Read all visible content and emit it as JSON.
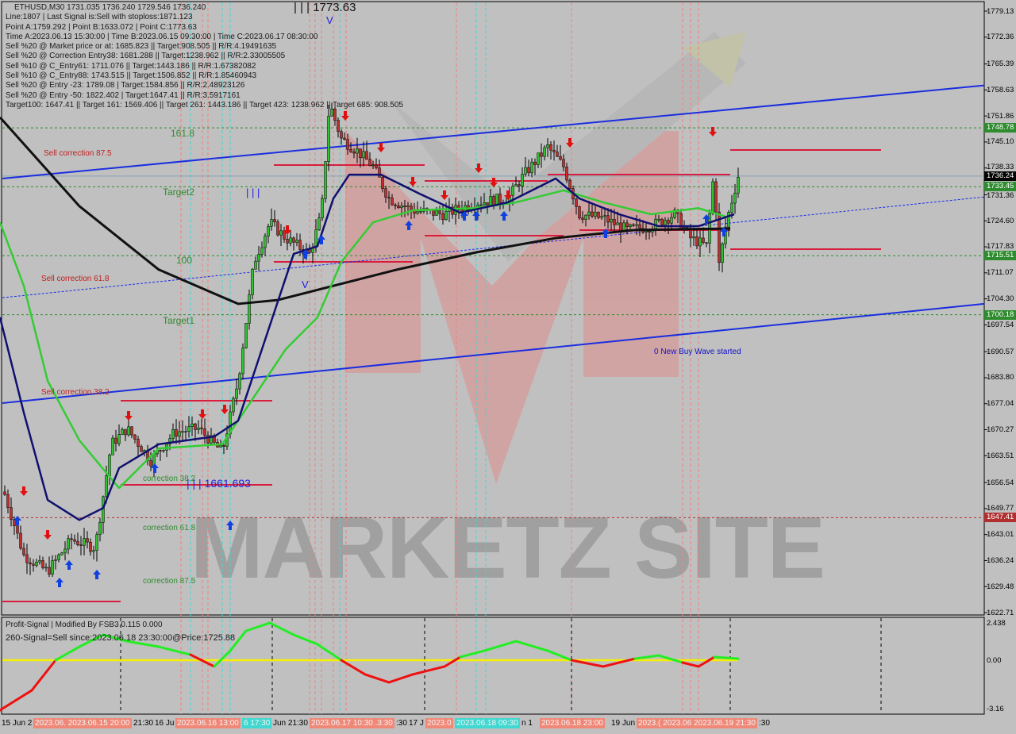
{
  "header": {
    "symbol_line": "ETHUSD,M30  1731.035 1736.240 1729.546 1736.240",
    "lines": [
      "Line:1807 | Last Signal is:Sell with stoploss:1871.123",
      "Point A:1759.292 | Point B:1633.072 | Point C:1773.63",
      "Time A:2023.06.13 15:30:00 | Time B:2023.06.15 09:30:00 | Time C:2023.06.17 08:30:00",
      "Sell %20 @ Market price or at: 1685.823 || Target:908.505 || R/R:4.19491635",
      "Sell %20 @ Correction Entry38: 1681.288 || Target:1238.962 || R/R:2.33005505",
      "Sell %10 @ C_Entry61: 1711.076 || Target:1443.186 || R/R:1.67382082",
      "Sell %10 @ C_Entry88: 1743.515 || Target:1506.852 || R/R:1.85460943",
      "Sell %20 @ Entry -23: 1789.08 | Target:1584.856 || R/R:2.48923126",
      "Sell %20 @ Entry -50: 1822.402 | Target:1647.41 || R/R:3.5917161",
      "Target100: 1647.41 || Target 161: 1569.406 || Target 261: 1443.186 || Target 423: 1238.962 || Target 685: 908.505"
    ]
  },
  "indicator": {
    "title": "Profit-Signal | Modified By FSB3 0.115 0.000",
    "signal": "260-Signal=Sell since:2023.06.18 23:30:00@Price:1725.88"
  },
  "chart_data": {
    "type": "line",
    "title": "ETHUSD,M30",
    "ylim": [
      1622.715,
      1779.13
    ],
    "y_ticks": [
      "1779.13",
      "1772.36",
      "1765.39",
      "1758.63",
      "1751.86",
      "1745.10",
      "1738.33",
      "1731.36",
      "1724.60",
      "1717.83",
      "1711.07",
      "1704.30",
      "1697.54",
      "1690.57",
      "1683.80",
      "1677.04",
      "1670.27",
      "1663.51",
      "1656.54",
      "1649.77",
      "1643.01",
      "1636.24",
      "1629.48",
      "1622.71"
    ],
    "price_close": [
      1654.1,
      1637.6,
      1633.4,
      1641.7,
      1639.6,
      1666.5,
      1670.6,
      1662.3,
      1669.6,
      1670.6,
      1664.4,
      1683.0,
      1713.9,
      1724.2,
      1720.1,
      1716.0,
      1726.3,
      1755.2,
      1745.9,
      1742.8,
      1738.7,
      1730.4,
      1727.3,
      1726.3,
      1729.4,
      1730.4,
      1736.6,
      1743.8,
      1738.7,
      1726.3,
      1725.3,
      1722.2,
      1723.2,
      1726.3,
      1720.1,
      1718.0,
      1738.7,
      1711.9,
      1724.2,
      1736.24
    ],
    "ma_black": [
      1751.5,
      1728.4,
      1711.9,
      1703.0,
      1704.0,
      1707.7,
      1711.9,
      1716.4,
      1720.1,
      1722.2,
      1722.6
    ],
    "ma_green": [
      1724.2,
      1707.7,
      1683.0,
      1667.5,
      1655.1,
      1665.4,
      1666.5,
      1678.8,
      1691.2,
      1699.5,
      1713.9,
      1724.2,
      1727.3,
      1727.9,
      1729.4,
      1732.5,
      1729.4,
      1726.3,
      1727.9,
      1725.3
    ],
    "ma_navy": [
      1699.5,
      1674.7,
      1652.0,
      1646.8,
      1649.9,
      1660.3,
      1666.5,
      1668.5,
      1672.6,
      1691.2,
      1716.0,
      1718.0,
      1730.4,
      1736.6,
      1736.6,
      1731.5,
      1726.7,
      1729.4,
      1735.6,
      1730.4,
      1726.3,
      1723.2,
      1723.2,
      1726.3
    ],
    "channel_upper": [
      1735.6,
      1759.8
    ],
    "channel_lower": [
      1677.2,
      1703.0
    ],
    "channel_mid": [
      1704.6,
      1730.8
    ],
    "levels": [
      {
        "price": "1748.78",
        "color": "#2e8b2e"
      },
      {
        "price": "1733.45",
        "color": "#2e8b2e"
      },
      {
        "price": "1715.51",
        "color": "#2e8b2e"
      },
      {
        "price": "1700.18",
        "color": "#2e8b2e"
      },
      {
        "price": "1647.41",
        "color": "#b03030"
      }
    ],
    "current_price": "1736.24",
    "annotations": [
      {
        "text": "161.8",
        "color": "#2e8b2e"
      },
      {
        "text": "Target2",
        "color": "#2e8b2e"
      },
      {
        "text": "100",
        "color": "#2e8b2e"
      },
      {
        "text": "Target1",
        "color": "#2e8b2e"
      },
      {
        "text": "Sell correction 87.5",
        "color": "#c02020"
      },
      {
        "text": "Sell correction 61.8",
        "color": "#c02020"
      },
      {
        "text": "Sell correction 38.2",
        "color": "#c02020"
      },
      {
        "text": "correction 38.2",
        "color": "#2e8b2e"
      },
      {
        "text": "correction 61.8",
        "color": "#2e8b2e"
      },
      {
        "text": "correction 87.5",
        "color": "#2e8b2e"
      },
      {
        "text": "0 New Buy Wave started",
        "color": "#1010d0"
      },
      {
        "text": "| | | 1773.63",
        "color": "#111"
      },
      {
        "text": "| | | 1661.693",
        "color": "#2020e0"
      },
      {
        "text": "V",
        "color": "#2020e0"
      },
      {
        "text": "V",
        "color": "#2020e0"
      },
      {
        "text": "| | |",
        "color": "#2020e0"
      }
    ],
    "indicator": {
      "ylim": [
        -3.16,
        2.438
      ],
      "y_ticks": [
        "2.438",
        "0.00",
        "-3.16"
      ],
      "values": [
        -3.16,
        -1.91,
        0,
        0.88,
        1.66,
        1.24,
        0.88,
        0.36,
        -0.4,
        0.62,
        1.92,
        2.44,
        1.66,
        1.04,
        0,
        -0.9,
        -1.4,
        -0.9,
        -0.4,
        0.21,
        0.62,
        1.24,
        0.62,
        0,
        -0.4,
        0.1,
        0.31,
        -0.15,
        -0.4,
        0.21,
        0.1
      ]
    },
    "x_labels": [
      {
        "text": "15 Jun 2",
        "style": ""
      },
      {
        "text": "2023.06. 2023.06.15 20:00",
        "style": "s"
      },
      {
        "text": "21:30",
        "style": ""
      },
      {
        "text": "16 Ju",
        "style": ""
      },
      {
        "text": "2023.06.16 13:00",
        "style": "s"
      },
      {
        "text": "6 17:30",
        "style": "c"
      },
      {
        "text": "Jun 21:30",
        "style": ""
      },
      {
        "text": "2023.06.17 10:30 .3:30",
        "style": "s"
      },
      {
        "text": ":30",
        "style": ""
      },
      {
        "text": "17 J",
        "style": ""
      },
      {
        "text": "2023.0",
        "style": "s"
      },
      {
        "text": "2023.06.18 09:30",
        "style": "c"
      },
      {
        "text": "n 1",
        "style": ""
      },
      {
        "text": "2023.06.18 23:00",
        "style": "s"
      },
      {
        "text": "19 Jun",
        "style": ""
      },
      {
        "text": "2023.( 2023.06 2023.06.19 21:30",
        "style": "s"
      },
      {
        "text": ":30",
        "style": ""
      }
    ],
    "watermark": "MARKETZ SITE",
    "colors": {
      "bg": "#c0c0c0",
      "ma_black": "#111111",
      "ma_green": "#33cc33",
      "ma_navy": "#101070",
      "channel": "#1a2ee0",
      "target_line": "#d81e3c",
      "signal_up": "#22ee22",
      "signal_down": "#ee1111",
      "zero": "#f5f000"
    }
  }
}
